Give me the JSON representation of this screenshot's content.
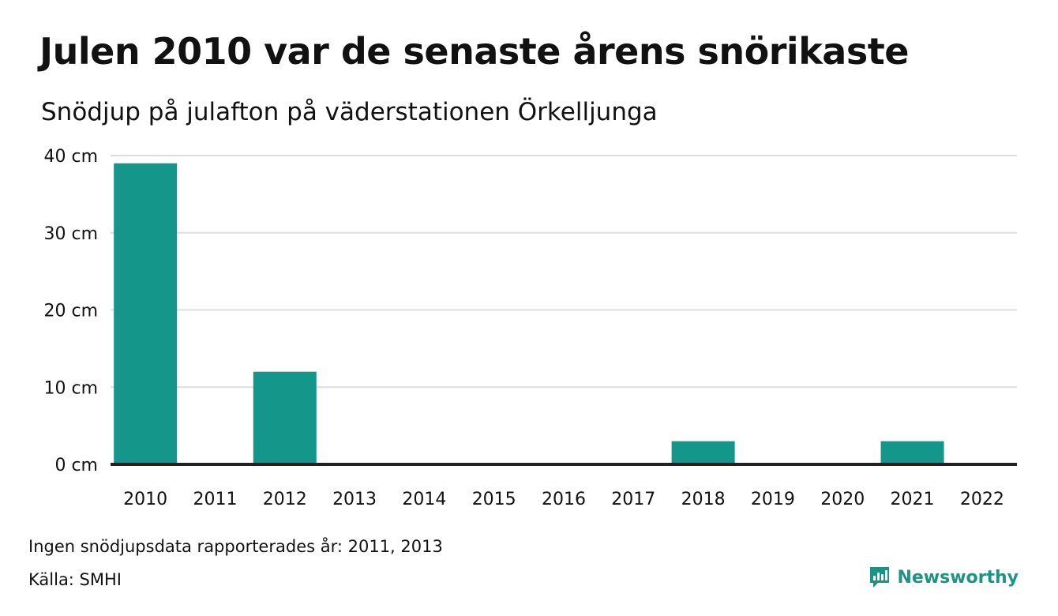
{
  "title": "Julen 2010 var de senaste årens snörikaste",
  "subtitle": "Snödjup på julafton på väderstationen Örkelljunga",
  "note": "Ingen snödjupsdata rapporterades år: 2011, 2013",
  "source": "Källa: SMHI",
  "brand": {
    "name": "Newsworthy",
    "icon": "newsworthy-logo-icon",
    "color": "#1e9385"
  },
  "colors": {
    "bar": "#14968a",
    "grid": "#dddddd",
    "baseline": "#222222"
  },
  "chart_data": {
    "type": "bar",
    "categories": [
      "2010",
      "2011",
      "2012",
      "2013",
      "2014",
      "2015",
      "2016",
      "2017",
      "2018",
      "2019",
      "2020",
      "2021",
      "2022"
    ],
    "values": [
      39,
      null,
      12,
      null,
      0,
      0,
      0,
      0,
      3,
      0,
      0,
      3,
      0
    ],
    "y_ticks": [
      0,
      10,
      20,
      30,
      40
    ],
    "y_tick_labels": [
      "0 cm",
      "10 cm",
      "20 cm",
      "30 cm",
      "40 cm"
    ],
    "ylim": [
      0,
      40
    ],
    "grid": true,
    "legend": "none"
  }
}
